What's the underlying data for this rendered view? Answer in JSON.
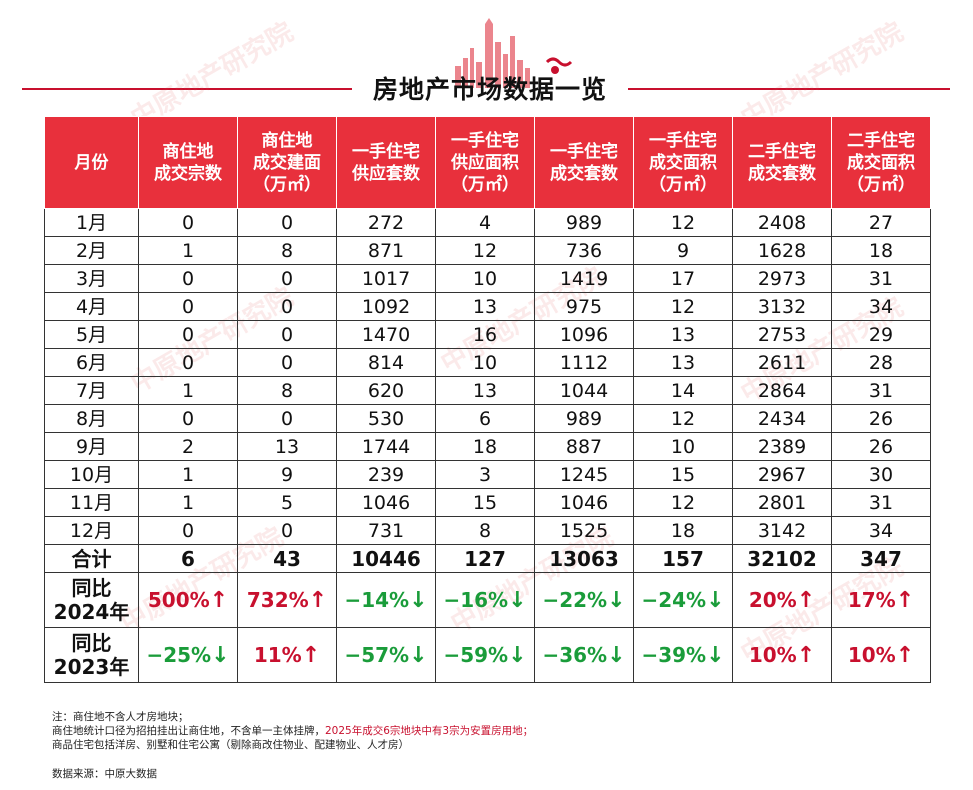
{
  "title": "房地产市场数据一览",
  "watermark": "中原地产研究院",
  "columns": [
    "月份",
    "商住地\n成交宗数",
    "商住地\n成交建面\n（万㎡）",
    "一手住宅\n供应套数",
    "一手住宅\n供应面积\n（万㎡）",
    "一手住宅\n成交套数",
    "一手住宅\n成交面积\n（万㎡）",
    "二手住宅\n成交套数",
    "二手住宅\n成交面积\n（万㎡）"
  ],
  "rows": [
    [
      "1月",
      "0",
      "0",
      "272",
      "4",
      "989",
      "12",
      "2408",
      "27"
    ],
    [
      "2月",
      "1",
      "8",
      "871",
      "12",
      "736",
      "9",
      "1628",
      "18"
    ],
    [
      "3月",
      "0",
      "0",
      "1017",
      "10",
      "1419",
      "17",
      "2973",
      "31"
    ],
    [
      "4月",
      "0",
      "0",
      "1092",
      "13",
      "975",
      "12",
      "3132",
      "34"
    ],
    [
      "5月",
      "0",
      "0",
      "1470",
      "16",
      "1096",
      "13",
      "2753",
      "29"
    ],
    [
      "6月",
      "0",
      "0",
      "814",
      "10",
      "1112",
      "13",
      "2611",
      "28"
    ],
    [
      "7月",
      "1",
      "8",
      "620",
      "13",
      "1044",
      "14",
      "2864",
      "31"
    ],
    [
      "8月",
      "0",
      "0",
      "530",
      "6",
      "989",
      "12",
      "2434",
      "26"
    ],
    [
      "9月",
      "2",
      "13",
      "1744",
      "18",
      "887",
      "10",
      "2389",
      "26"
    ],
    [
      "10月",
      "1",
      "9",
      "239",
      "3",
      "1245",
      "15",
      "2967",
      "30"
    ],
    [
      "11月",
      "1",
      "5",
      "1046",
      "15",
      "1046",
      "12",
      "2801",
      "31"
    ],
    [
      "12月",
      "0",
      "0",
      "731",
      "8",
      "1525",
      "18",
      "3142",
      "34"
    ]
  ],
  "total": [
    "合计",
    "6",
    "43",
    "10446",
    "127",
    "13063",
    "157",
    "32102",
    "347"
  ],
  "yoy": [
    {
      "label": "同比\n2024年",
      "cells": [
        {
          "value": "500%",
          "arrow": "↑",
          "trend": "up"
        },
        {
          "value": "732%",
          "arrow": "↑",
          "trend": "up"
        },
        {
          "value": "−14%",
          "arrow": "↓",
          "trend": "down"
        },
        {
          "value": "−16%",
          "arrow": "↓",
          "trend": "down"
        },
        {
          "value": "−22%",
          "arrow": "↓",
          "trend": "down"
        },
        {
          "value": "−24%",
          "arrow": "↓",
          "trend": "down"
        },
        {
          "value": "20%",
          "arrow": "↑",
          "trend": "up"
        },
        {
          "value": "17%",
          "arrow": "↑",
          "trend": "up"
        }
      ]
    },
    {
      "label": "同比\n2023年",
      "cells": [
        {
          "value": "−25%",
          "arrow": "↓",
          "trend": "down"
        },
        {
          "value": "11%",
          "arrow": "↑",
          "trend": "up"
        },
        {
          "value": "−57%",
          "arrow": "↓",
          "trend": "down"
        },
        {
          "value": "−59%",
          "arrow": "↓",
          "trend": "down"
        },
        {
          "value": "−36%",
          "arrow": "↓",
          "trend": "down"
        },
        {
          "value": "−39%",
          "arrow": "↓",
          "trend": "down"
        },
        {
          "value": "10%",
          "arrow": "↑",
          "trend": "up"
        },
        {
          "value": "10%",
          "arrow": "↑",
          "trend": "up"
        }
      ]
    }
  ],
  "notes": {
    "line1": "注：商住地不含人才房地块；",
    "line2_a": "商住地统计口径为招拍挂出让商住地，不含单一主体挂牌，",
    "line2_b": "2025年成交6宗地块中有3宗为安置房用地；",
    "line3": "商品住宅包括洋房、别墅和住宅公寓（剔除商改住物业、配建物业、人才房）"
  },
  "source": "数据来源：中原大数据",
  "colors": {
    "accent": "#c8102e",
    "header_bg": "#e8303c",
    "up": "#c8102e",
    "down": "#1a9c3a"
  }
}
